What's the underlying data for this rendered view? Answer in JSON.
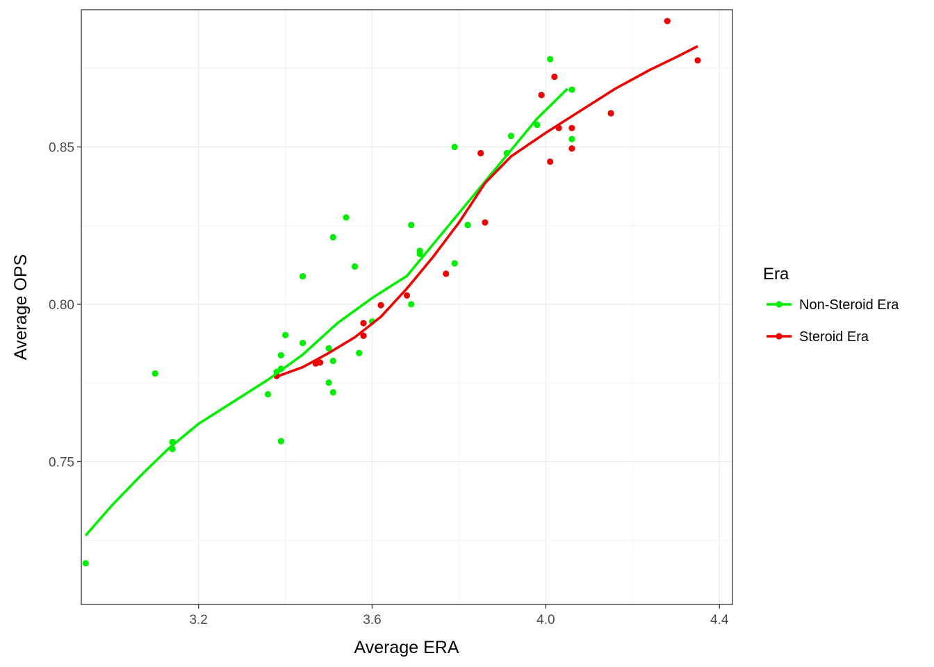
{
  "chart_data": {
    "type": "scatter",
    "xlabel": "Average ERA",
    "ylabel": "Average OPS",
    "xlim": [
      2.93,
      4.43
    ],
    "ylim": [
      0.7046,
      0.8936
    ],
    "x_ticks": [
      3.2,
      3.6,
      4.0,
      4.4
    ],
    "x_tick_labels": [
      "3.2",
      "3.6",
      "4.0",
      "4.4"
    ],
    "y_ticks": [
      0.75,
      0.8,
      0.85
    ],
    "y_tick_labels": [
      "0.75",
      "0.80",
      "0.85"
    ],
    "grid": true,
    "legend": {
      "title": "Era",
      "position": "right"
    },
    "series": [
      {
        "name": "Non-Steroid Era",
        "color": "#00ee00",
        "points": [
          [
            2.94,
            0.7177
          ],
          [
            3.1,
            0.778
          ],
          [
            3.14,
            0.7562
          ],
          [
            3.14,
            0.754
          ],
          [
            3.36,
            0.7714
          ],
          [
            3.38,
            0.7785
          ],
          [
            3.39,
            0.7565
          ],
          [
            3.39,
            0.7838
          ],
          [
            3.39,
            0.7795
          ],
          [
            3.4,
            0.7902
          ],
          [
            3.44,
            0.7877
          ],
          [
            3.44,
            0.8089
          ],
          [
            3.5,
            0.786
          ],
          [
            3.5,
            0.7751
          ],
          [
            3.51,
            0.772
          ],
          [
            3.51,
            0.782
          ],
          [
            3.51,
            0.8213
          ],
          [
            3.54,
            0.8276
          ],
          [
            3.56,
            0.812
          ],
          [
            3.57,
            0.7845
          ],
          [
            3.6,
            0.7945
          ],
          [
            3.69,
            0.8252
          ],
          [
            3.69,
            0.8
          ],
          [
            3.71,
            0.816
          ],
          [
            3.71,
            0.817
          ],
          [
            3.79,
            0.85
          ],
          [
            3.79,
            0.813
          ],
          [
            3.82,
            0.8252
          ],
          [
            3.91,
            0.848
          ],
          [
            3.92,
            0.8535
          ],
          [
            3.98,
            0.857
          ],
          [
            4.01,
            0.8779
          ],
          [
            4.06,
            0.8525
          ],
          [
            4.06,
            0.8682
          ]
        ],
        "smooth": [
          [
            2.94,
            0.7265
          ],
          [
            3.0,
            0.736
          ],
          [
            3.07,
            0.746
          ],
          [
            3.13,
            0.754
          ],
          [
            3.2,
            0.762
          ],
          [
            3.28,
            0.769
          ],
          [
            3.36,
            0.776
          ],
          [
            3.44,
            0.784
          ],
          [
            3.52,
            0.794
          ],
          [
            3.6,
            0.802
          ],
          [
            3.68,
            0.809
          ],
          [
            3.74,
            0.819
          ],
          [
            3.8,
            0.829
          ],
          [
            3.86,
            0.839
          ],
          [
            3.92,
            0.849
          ],
          [
            3.98,
            0.859
          ],
          [
            4.05,
            0.8685
          ]
        ]
      },
      {
        "name": "Steroid Era",
        "color": "#ee0000",
        "points": [
          [
            3.38,
            0.7772
          ],
          [
            3.47,
            0.7812
          ],
          [
            3.48,
            0.7815
          ],
          [
            3.58,
            0.79
          ],
          [
            3.58,
            0.794
          ],
          [
            3.62,
            0.7997
          ],
          [
            3.68,
            0.8028
          ],
          [
            3.77,
            0.8097
          ],
          [
            3.85,
            0.848
          ],
          [
            3.86,
            0.826
          ],
          [
            3.99,
            0.8665
          ],
          [
            4.01,
            0.8453
          ],
          [
            4.02,
            0.8723
          ],
          [
            4.03,
            0.856
          ],
          [
            4.06,
            0.8495
          ],
          [
            4.06,
            0.856
          ],
          [
            4.15,
            0.8607
          ],
          [
            4.28,
            0.89
          ],
          [
            4.35,
            0.8775
          ]
        ],
        "smooth": [
          [
            3.38,
            0.777
          ],
          [
            3.44,
            0.78
          ],
          [
            3.5,
            0.7845
          ],
          [
            3.56,
            0.7895
          ],
          [
            3.62,
            0.796
          ],
          [
            3.68,
            0.805
          ],
          [
            3.74,
            0.815
          ],
          [
            3.8,
            0.826
          ],
          [
            3.86,
            0.8385
          ],
          [
            3.92,
            0.847
          ],
          [
            4.0,
            0.8545
          ],
          [
            4.08,
            0.8615
          ],
          [
            4.16,
            0.8685
          ],
          [
            4.24,
            0.8745
          ],
          [
            4.3,
            0.8785
          ],
          [
            4.35,
            0.882
          ]
        ]
      }
    ]
  }
}
